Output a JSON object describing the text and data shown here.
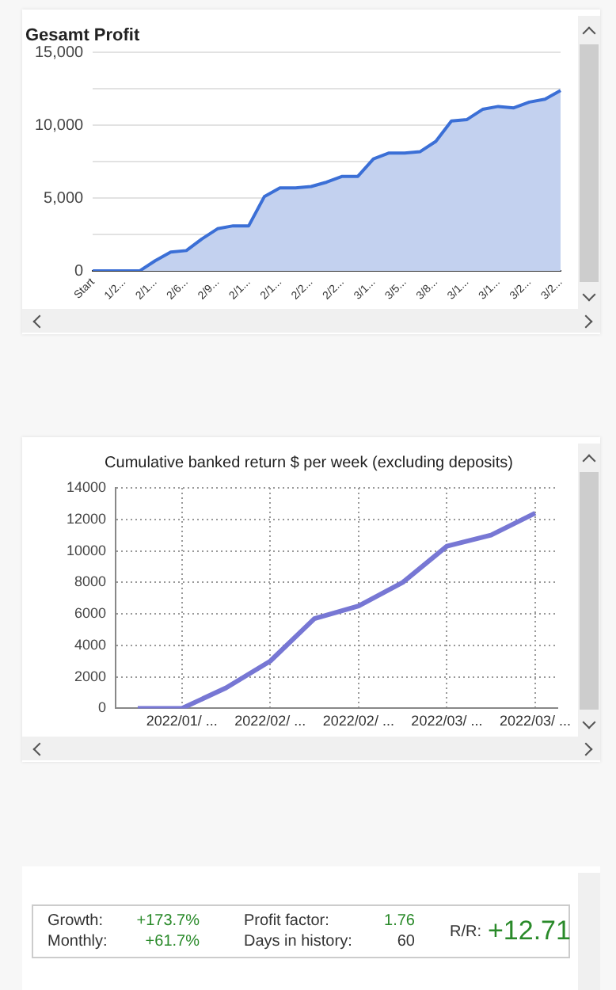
{
  "chart_data": [
    {
      "type": "area",
      "title": "Gesamt Profit",
      "categories": [
        "Start",
        null,
        "1/2...",
        null,
        "2/1...",
        null,
        "2/6...",
        null,
        "2/9...",
        null,
        "2/1...",
        null,
        "2/1...",
        null,
        "2/2...",
        null,
        "2/2...",
        null,
        "3/1...",
        null,
        "3/5...",
        null,
        "3/8...",
        null,
        "3/1...",
        null,
        "3/1...",
        null,
        "3/2...",
        null,
        "3/2..."
      ],
      "series": [
        {
          "color": "#3b6fd6",
          "values": [
            0,
            0,
            0,
            0,
            700,
            1300,
            1400,
            2200,
            2900,
            3100,
            3100,
            5100,
            5700,
            5700,
            5800,
            6100,
            6500,
            6500,
            7700,
            8100,
            8100,
            8200,
            8900,
            10300,
            10400,
            11100,
            11300,
            11200,
            11600,
            11800,
            12400
          ]
        }
      ],
      "ylim": [
        0,
        15000
      ],
      "yticks": [
        {
          "value": 0,
          "label": "0"
        },
        {
          "value": 2500,
          "label": null
        },
        {
          "value": 5000,
          "label": "5,000"
        },
        {
          "value": 7500,
          "label": null
        },
        {
          "value": 10000,
          "label": "10,000"
        },
        {
          "value": 12500,
          "label": null
        },
        {
          "value": 15000,
          "label": "15,000"
        }
      ],
      "grid": "y",
      "legend": false
    },
    {
      "type": "line",
      "title": "Cumulative banked return $ per week (excluding deposits)",
      "categories": [
        null,
        "2022/01/ ...",
        null,
        "2022/02/ ...",
        null,
        "2022/02/ ...",
        null,
        "2022/03/ ...",
        null,
        "2022/03/ ..."
      ],
      "series": [
        {
          "color": "#7777d4",
          "values": [
            0,
            0,
            1300,
            3000,
            5700,
            6500,
            8000,
            10300,
            11000,
            12400
          ]
        }
      ],
      "ylim": [
        0,
        14000
      ],
      "yticks": [
        0,
        2000,
        4000,
        6000,
        8000,
        10000,
        12000,
        14000
      ],
      "grid": true,
      "legend": false
    },
    {
      "type": "other",
      "annotations": [
        "Growth:",
        "+173.7%",
        "Profit factor:",
        "1.76",
        "Monthly:",
        "+61.7%",
        "Days in history:",
        "60",
        "R/R:",
        "+12.71"
      ]
    }
  ]
}
